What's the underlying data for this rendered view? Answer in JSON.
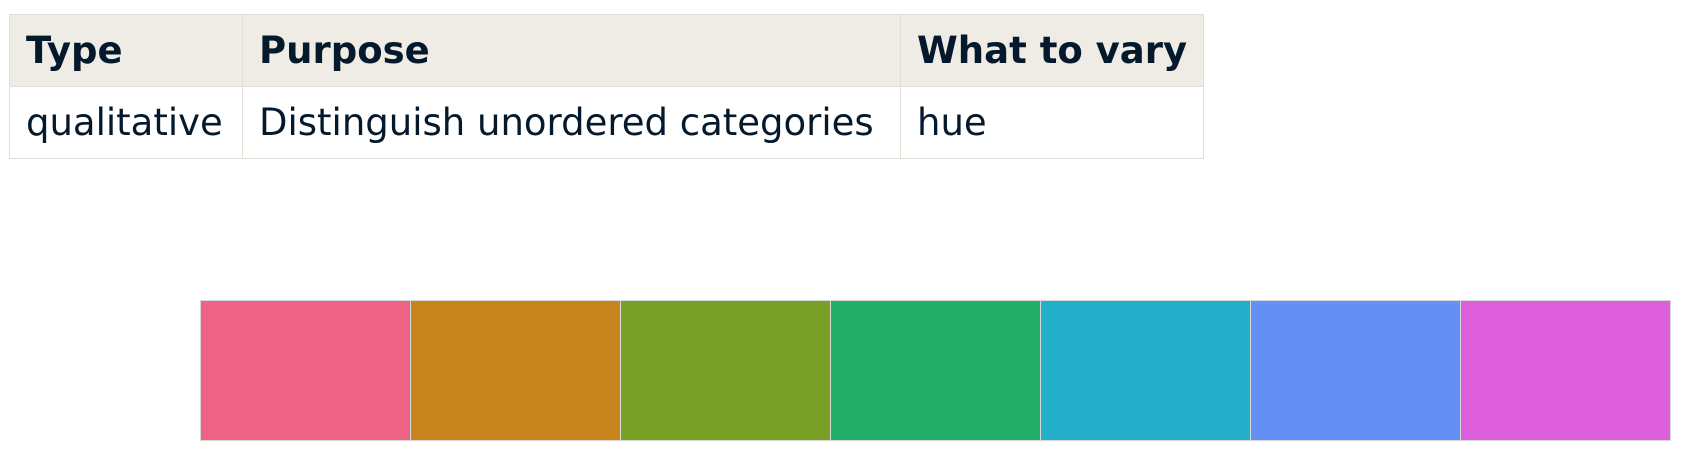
{
  "table": {
    "headers": {
      "type": "Type",
      "purpose": "Purpose",
      "vary": "What to vary"
    },
    "rows": [
      {
        "type": "qualitative",
        "purpose": "Distinguish unordered categories",
        "vary": "hue"
      }
    ]
  },
  "palette": {
    "swatches": [
      "#ee6285",
      "#c8841d",
      "#78a027",
      "#22ad68",
      "#23afc9",
      "#648ff5",
      "#dc5edb"
    ]
  }
}
